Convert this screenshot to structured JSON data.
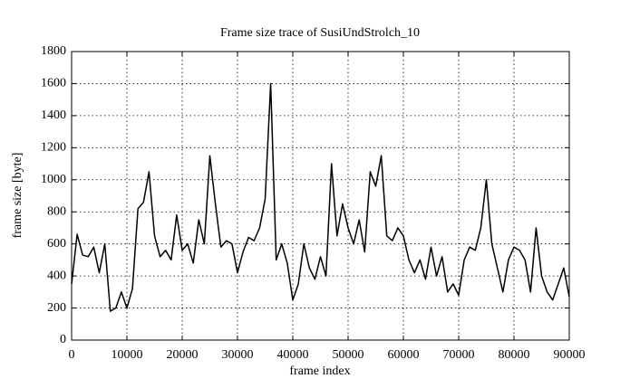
{
  "chart_data": {
    "type": "line",
    "title": "Frame size trace of SusiUndStrolch_10",
    "x_label": "frame index",
    "y_label": "frame size [byte]",
    "x": [
      0,
      1000,
      2000,
      3000,
      4000,
      5000,
      6000,
      7000,
      8000,
      9000,
      10000,
      11000,
      12000,
      13000,
      14000,
      15000,
      16000,
      17000,
      18000,
      19000,
      20000,
      21000,
      22000,
      23000,
      24000,
      25000,
      26000,
      27000,
      28000,
      29000,
      30000,
      31000,
      32000,
      33000,
      34000,
      35000,
      36000,
      37000,
      38000,
      39000,
      40000,
      41000,
      42000,
      43000,
      44000,
      45000,
      46000,
      47000,
      48000,
      49000,
      50000,
      51000,
      52000,
      53000,
      54000,
      55000,
      56000,
      57000,
      58000,
      59000,
      60000,
      61000,
      62000,
      63000,
      64000,
      65000,
      66000,
      67000,
      68000,
      69000,
      70000,
      71000,
      72000,
      73000,
      74000,
      75000,
      76000,
      77000,
      78000,
      79000,
      80000,
      81000,
      82000,
      83000,
      84000,
      85000,
      86000,
      87000,
      88000,
      89000,
      90000
    ],
    "series": [
      {
        "name": "SusiUndStrolch_10",
        "color": "#000000",
        "values": [
          350,
          660,
          530,
          520,
          580,
          420,
          600,
          180,
          200,
          300,
          200,
          320,
          820,
          860,
          1050,
          650,
          520,
          560,
          500,
          780,
          560,
          600,
          480,
          750,
          600,
          1150,
          850,
          580,
          620,
          600,
          420,
          550,
          640,
          620,
          700,
          880,
          1600,
          500,
          600,
          480,
          250,
          350,
          600,
          450,
          380,
          520,
          400,
          1100,
          650,
          850,
          700,
          600,
          750,
          550,
          1050,
          960,
          1150,
          650,
          620,
          700,
          650,
          500,
          420,
          500,
          380,
          580,
          400,
          520,
          300,
          350,
          280,
          500,
          580,
          560,
          700,
          1000,
          600,
          450,
          300,
          500,
          580,
          560,
          500,
          300,
          700,
          400,
          300,
          250,
          350,
          450,
          270
        ]
      }
    ],
    "xlim": [
      0,
      90000
    ],
    "ylim": [
      0,
      1800
    ],
    "xticks": [
      0,
      10000,
      20000,
      30000,
      40000,
      50000,
      60000,
      70000,
      80000,
      90000
    ],
    "yticks": [
      0,
      200,
      400,
      600,
      800,
      1000,
      1200,
      1400,
      1600,
      1800
    ],
    "grid": true
  }
}
